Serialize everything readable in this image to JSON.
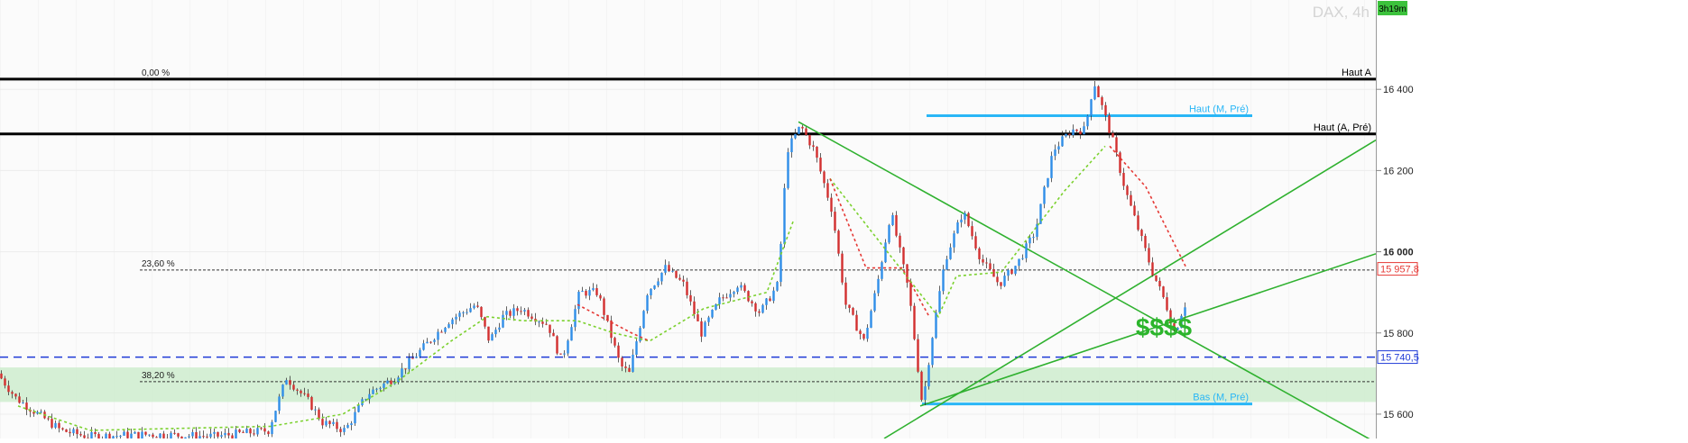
{
  "chart_data": {
    "type": "line",
    "title": "DAX, 4h",
    "timer": "3h19m",
    "y_range": [
      15540,
      16620
    ],
    "y_ticks": [
      {
        "value": 16400,
        "label": "16 400",
        "bold": false
      },
      {
        "value": 16200,
        "label": "16 200",
        "bold": false
      },
      {
        "value": 16000,
        "label": "16 000",
        "bold": true
      },
      {
        "value": 15800,
        "label": "15 800",
        "bold": false
      },
      {
        "value": 15600,
        "label": "15 600",
        "bold": false
      }
    ],
    "price_tags": [
      {
        "value": 15957.8,
        "label": "15 957,8",
        "color": "#e53935"
      },
      {
        "value": 15740.5,
        "label": "15 740,5",
        "color": "#1e3ad6"
      }
    ],
    "fibonacci": [
      {
        "label": "0,00 %",
        "value": 16425
      },
      {
        "label": "23,60 %",
        "value": 15955
      },
      {
        "label": "38,20 %",
        "value": 15680
      }
    ],
    "levels": [
      {
        "label": "Haut A",
        "value": 16425,
        "color": "#000000"
      },
      {
        "label": "Haut (A, Pré)",
        "value": 16290,
        "color": "#000000"
      },
      {
        "label": "Haut (M, Pré)",
        "value": 16335,
        "color": "#29b6f6"
      },
      {
        "label": "Bas (M, Pré)",
        "value": 15625,
        "color": "#29b6f6"
      }
    ],
    "support_zone": [
      15630,
      15715
    ],
    "dashed_level": 15740.5,
    "annotation": "$$$$",
    "annotation_color": "#2cb52c",
    "ma_colors": {
      "up": "#7bd12e",
      "down": "#e53935"
    },
    "candle_colors": {
      "up": "#2f8ee8",
      "down": "#d32f2f",
      "wick": "#222222"
    },
    "price_path": [
      [
        0,
        15700
      ],
      [
        20,
        15640
      ],
      [
        45,
        15600
      ],
      [
        70,
        15560
      ],
      [
        100,
        15545
      ],
      [
        170,
        15550
      ],
      [
        240,
        15545
      ],
      [
        300,
        15560
      ],
      [
        320,
        15690
      ],
      [
        345,
        15630
      ],
      [
        360,
        15580
      ],
      [
        385,
        15560
      ],
      [
        410,
        15650
      ],
      [
        440,
        15690
      ],
      [
        470,
        15760
      ],
      [
        500,
        15830
      ],
      [
        530,
        15870
      ],
      [
        545,
        15780
      ],
      [
        560,
        15840
      ],
      [
        580,
        15860
      ],
      [
        610,
        15820
      ],
      [
        625,
        15730
      ],
      [
        645,
        15900
      ],
      [
        665,
        15900
      ],
      [
        690,
        15720
      ],
      [
        700,
        15700
      ],
      [
        720,
        15900
      ],
      [
        740,
        15960
      ],
      [
        760,
        15920
      ],
      [
        780,
        15800
      ],
      [
        800,
        15880
      ],
      [
        820,
        15920
      ],
      [
        845,
        15850
      ],
      [
        865,
        15920
      ],
      [
        875,
        16250
      ],
      [
        890,
        16310
      ],
      [
        905,
        16250
      ],
      [
        925,
        16100
      ],
      [
        940,
        15870
      ],
      [
        960,
        15780
      ],
      [
        975,
        15920
      ],
      [
        990,
        16100
      ],
      [
        1010,
        15900
      ],
      [
        1025,
        15620
      ],
      [
        1035,
        15780
      ],
      [
        1050,
        15980
      ],
      [
        1070,
        16100
      ],
      [
        1090,
        15980
      ],
      [
        1110,
        15920
      ],
      [
        1130,
        15970
      ],
      [
        1150,
        16050
      ],
      [
        1170,
        16250
      ],
      [
        1190,
        16300
      ],
      [
        1205,
        16300
      ],
      [
        1215,
        16420
      ],
      [
        1235,
        16280
      ],
      [
        1250,
        16150
      ],
      [
        1265,
        16050
      ],
      [
        1280,
        15950
      ],
      [
        1295,
        15870
      ],
      [
        1305,
        15800
      ],
      [
        1315,
        15870
      ]
    ],
    "ma_up": [
      [
        20,
        15620
      ],
      [
        100,
        15560
      ],
      [
        300,
        15570
      ],
      [
        380,
        15600
      ],
      [
        440,
        15680
      ],
      [
        500,
        15780
      ],
      [
        540,
        15840
      ],
      [
        580,
        15830
      ],
      [
        640,
        15830
      ],
      [
        680,
        15800
      ],
      [
        720,
        15780
      ],
      [
        780,
        15860
      ],
      [
        850,
        15900
      ],
      [
        880,
        16080
      ],
      [
        920,
        16180
      ],
      [
        1040,
        15840
      ],
      [
        1060,
        15940
      ],
      [
        1110,
        15950
      ],
      [
        1180,
        16150
      ],
      [
        1225,
        16260
      ]
    ],
    "ma_down": [
      [
        640,
        15870
      ],
      [
        700,
        15800
      ],
      [
        720,
        15780
      ],
      [
        920,
        16180
      ],
      [
        960,
        15960
      ],
      [
        1000,
        15960
      ],
      [
        1030,
        15840
      ],
      [
        1230,
        16260
      ],
      [
        1270,
        16160
      ],
      [
        1315,
        15960
      ]
    ],
    "trendlines": [
      {
        "from": [
          885,
          16320
        ],
        "to": [
          1525,
          15530
        ]
      },
      {
        "from": [
          1020,
          15620
        ],
        "to": [
          1525,
          15995
        ]
      },
      {
        "from": [
          980,
          15540
        ],
        "to": [
          1525,
          16275
        ]
      }
    ]
  }
}
